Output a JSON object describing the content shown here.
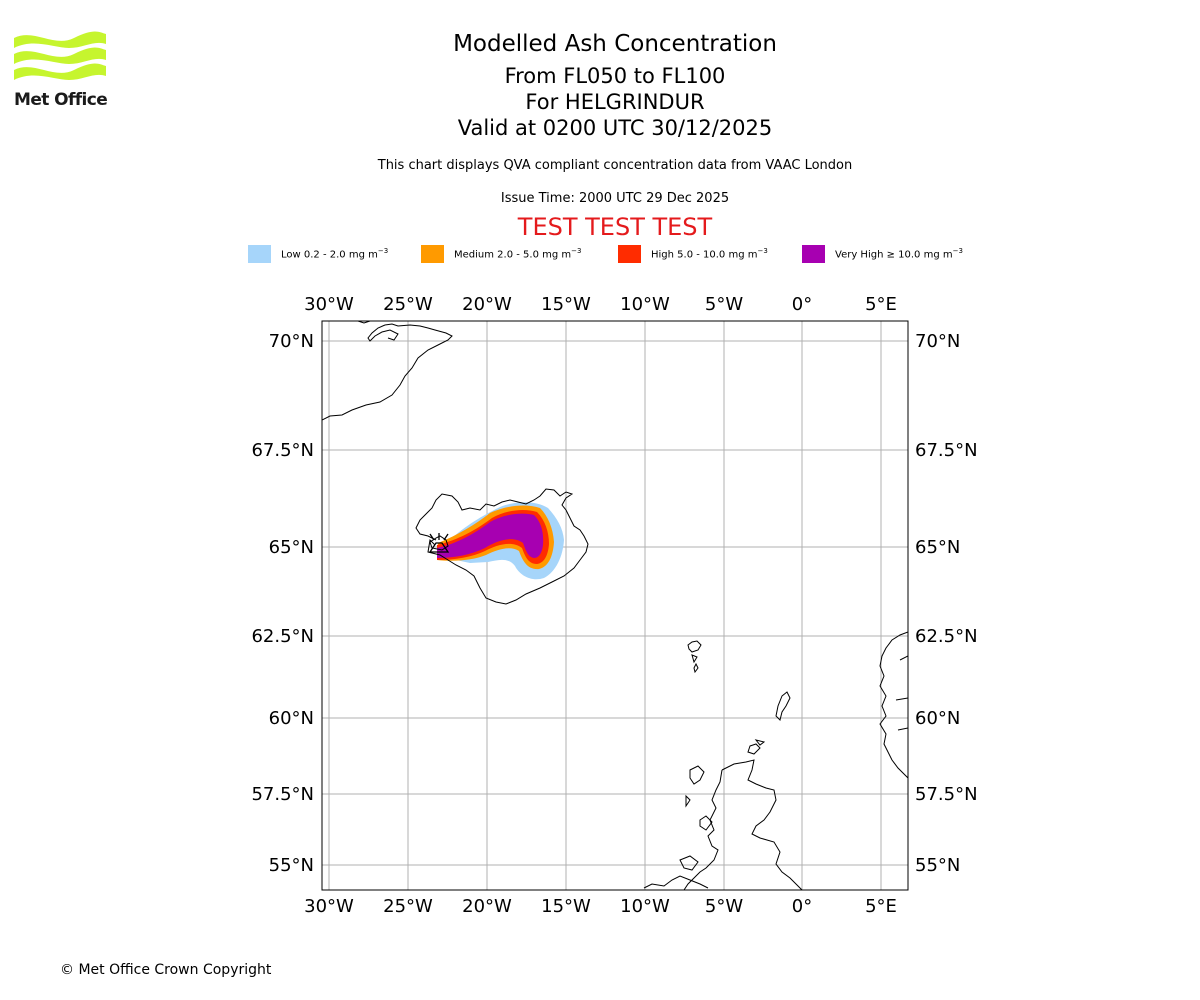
{
  "header": {
    "logo_text": "Met Office",
    "title": "Modelled Ash Concentration",
    "levels": "From FL050 to FL100",
    "volcano": "For HELGRINDUR",
    "valid": "Valid at 0200 UTC 30/12/2025",
    "description": "This chart displays QVA compliant concentration data from VAAC London",
    "issue_time": "Issue Time: 2000 UTC 29 Dec 2025",
    "test_banner": "TEST TEST TEST"
  },
  "legend": [
    {
      "label": "Low 0.2 - 2.0 mg m",
      "unit_exp": "−3",
      "color": "#a6d5fa"
    },
    {
      "label": "Medium 2.0 - 5.0 mg m",
      "unit_exp": "−3",
      "color": "#ff9a00"
    },
    {
      "label": "High 5.0 - 10.0 mg m",
      "unit_exp": "−3",
      "color": "#ff2c00"
    },
    {
      "label": "Very High  ≥  10.0 mg m",
      "unit_exp": "−3",
      "color": "#a700b1"
    }
  ],
  "map": {
    "lon_ticks": [
      "30°W",
      "25°W",
      "20°W",
      "15°W",
      "10°W",
      "5°W",
      "0°",
      "5°E"
    ],
    "lat_ticks": [
      "70°N",
      "67.5°N",
      "65°N",
      "62.5°N",
      "60°N",
      "57.5°N",
      "55°N"
    ],
    "volcano_marker": "volcano-symbol"
  },
  "footer": {
    "copyright": "© Met Office Crown Copyright"
  }
}
